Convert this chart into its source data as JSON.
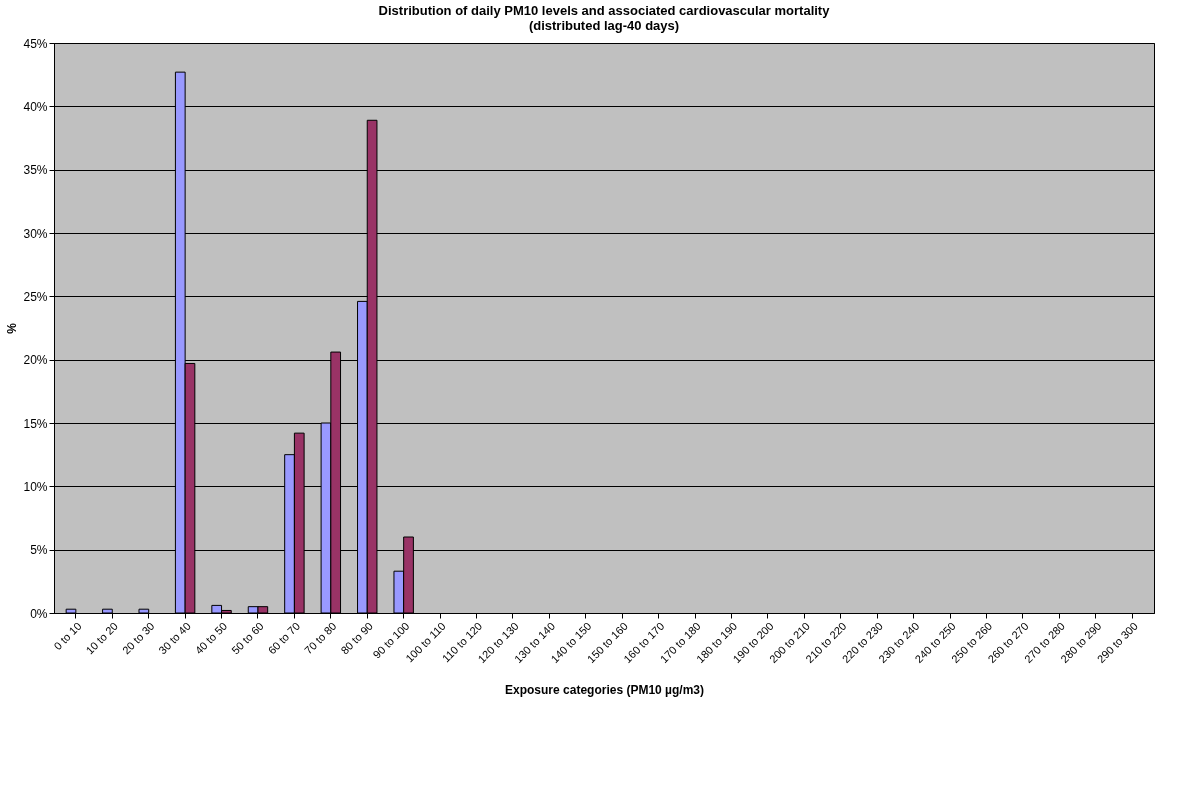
{
  "chart_data": {
    "type": "bar",
    "title": "Distribution of daily PM10 levels and associated cardiovascular mortality\n(distributed lag-40 days)",
    "xlabel": "Exposure categories (PM10 µg/m3)",
    "ylabel": "%",
    "categories": [
      "0 to 10",
      "10 to 20",
      "20 to 30",
      "30 to 40",
      "40 to 50",
      "50 to 60",
      "60 to 70",
      "70 to 80",
      "80 to 90",
      "90 to 100",
      "100 to 110",
      "110 to 120",
      "120 to 130",
      "130 to 140",
      "140 to 150",
      "150 to 160",
      "160 to 170",
      "170 to 180",
      "180 to 190",
      "190 to 200",
      "200 to 210",
      "210 to 220",
      "220 to 230",
      "230 to 240",
      "240 to 250",
      "250 to 260",
      "260 to 270",
      "270 to 280",
      "280 to 290",
      "290 to 300"
    ],
    "series": [
      {
        "color": "#9999ff",
        "values": [
          0.3,
          0.3,
          0.3,
          42.7,
          0.6,
          0.5,
          12.5,
          15.0,
          24.6,
          3.3,
          0,
          0,
          0,
          0,
          0,
          0,
          0,
          0,
          0,
          0,
          0,
          0,
          0,
          0,
          0,
          0,
          0,
          0,
          0,
          0
        ]
      },
      {
        "color": "#993366",
        "values": [
          0,
          0,
          0,
          19.7,
          0.2,
          0.5,
          14.2,
          20.6,
          38.9,
          6.0,
          0,
          0,
          0,
          0,
          0,
          0,
          0,
          0,
          0,
          0,
          0,
          0,
          0,
          0,
          0,
          0,
          0,
          0,
          0,
          0
        ]
      }
    ],
    "ylim": [
      0,
      45
    ],
    "yticks": [
      {
        "value": 0,
        "label": "0%"
      },
      {
        "value": 5,
        "label": "5%"
      },
      {
        "value": 10,
        "label": "10%"
      },
      {
        "value": 15,
        "label": "15%"
      },
      {
        "value": 20,
        "label": "20%"
      },
      {
        "value": 25,
        "label": "25%"
      },
      {
        "value": 30,
        "label": "30%"
      },
      {
        "value": 35,
        "label": "35%"
      },
      {
        "value": 40,
        "label": "40%"
      },
      {
        "value": 45,
        "label": "45%"
      }
    ],
    "grid": "y",
    "legend": false
  }
}
